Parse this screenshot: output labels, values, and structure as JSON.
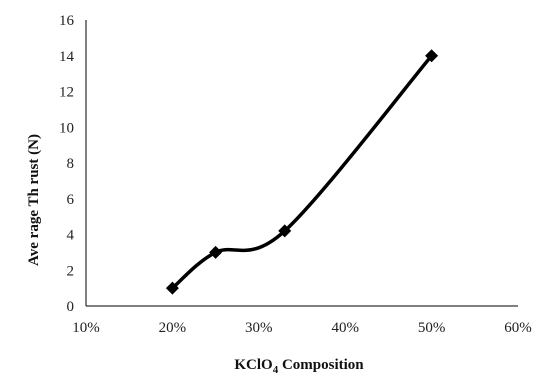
{
  "chart_data": {
    "type": "line",
    "x": [
      20,
      25,
      33,
      50
    ],
    "series": [
      {
        "values": [
          1.0,
          3.0,
          4.2,
          14.0
        ],
        "color": "#000000",
        "marker": "diamond",
        "smooth": true
      }
    ],
    "title": "",
    "xlabel_main": "KClO",
    "xlabel_sub": "4",
    "xlabel_rest": " Composition",
    "ylabel": "Ave rage Th rust (N)",
    "xlim": [
      10,
      60
    ],
    "ylim": [
      0,
      16
    ],
    "x_ticks": [
      10,
      20,
      30,
      40,
      50,
      60
    ],
    "x_tick_labels": [
      "10%",
      "20%",
      "30%",
      "40%",
      "50%",
      "60%"
    ],
    "y_ticks": [
      0,
      2,
      4,
      6,
      8,
      10,
      12,
      14,
      16
    ],
    "y_tick_labels": [
      "0",
      "2",
      "4",
      "6",
      "8",
      "10",
      "12",
      "14",
      "16"
    ],
    "grid": false,
    "legend": "none"
  }
}
